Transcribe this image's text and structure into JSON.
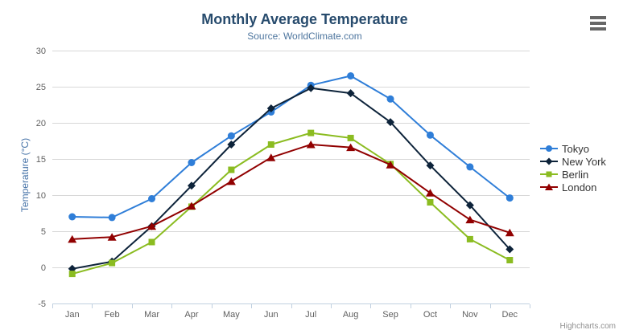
{
  "header": {
    "title": "Monthly Average Temperature",
    "subtitle": "Source: WorldClimate.com"
  },
  "context_menu": {
    "icon": "hamburger-icon"
  },
  "credits": {
    "label": "Highcharts.com"
  },
  "chart_data": {
    "type": "line",
    "title": "Monthly Average Temperature",
    "subtitle": "Source: WorldClimate.com",
    "xlabel": "",
    "ylabel": "Temperature (°C)",
    "categories": [
      "Jan",
      "Feb",
      "Mar",
      "Apr",
      "May",
      "Jun",
      "Jul",
      "Aug",
      "Sep",
      "Oct",
      "Nov",
      "Dec"
    ],
    "series": [
      {
        "name": "Tokyo",
        "color": "#2f7ed8",
        "marker": "circle",
        "values": [
          7.0,
          6.9,
          9.5,
          14.5,
          18.2,
          21.5,
          25.2,
          26.5,
          23.3,
          18.3,
          13.9,
          9.6
        ]
      },
      {
        "name": "New York",
        "color": "#0d233a",
        "marker": "diamond",
        "values": [
          -0.2,
          0.8,
          5.7,
          11.3,
          17.0,
          22.0,
          24.8,
          24.1,
          20.1,
          14.1,
          8.6,
          2.5
        ]
      },
      {
        "name": "Berlin",
        "color": "#8bbc21",
        "marker": "square",
        "values": [
          -0.9,
          0.6,
          3.5,
          8.4,
          13.5,
          17.0,
          18.6,
          17.9,
          14.3,
          9.0,
          3.9,
          1.0
        ]
      },
      {
        "name": "London",
        "color": "#910000",
        "marker": "triangle",
        "values": [
          3.9,
          4.2,
          5.7,
          8.5,
          11.9,
          15.2,
          17.0,
          16.6,
          14.2,
          10.3,
          6.6,
          4.8
        ]
      }
    ],
    "ylim": [
      -5,
      30
    ],
    "y_ticks": [
      -5,
      0,
      5,
      10,
      15,
      20,
      25,
      30
    ],
    "grid": "horizontal",
    "legend_position": "right",
    "style": {
      "grid_color": "#d8d8d8",
      "axis_line_color": "#c0d0e0",
      "tick_color": "#c0d0e0"
    }
  }
}
